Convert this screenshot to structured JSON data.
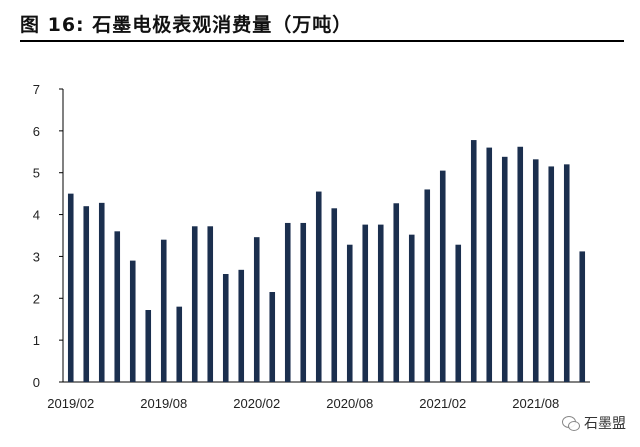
{
  "figure": {
    "title": "图 16:  石墨电极表观消费量（万吨）"
  },
  "watermark": {
    "text": "石墨盟",
    "icon": "wechat-icon"
  },
  "chart_data": {
    "type": "bar",
    "color": "#1b2f4e",
    "categories": [
      "2019/02",
      "2019/03",
      "2019/04",
      "2019/05",
      "2019/06",
      "2019/07",
      "2019/08",
      "2019/09",
      "2019/10",
      "2019/11",
      "2019/12",
      "2020/01",
      "2020/02",
      "2020/03",
      "2020/04",
      "2020/05",
      "2020/06",
      "2020/07",
      "2020/08",
      "2020/09",
      "2020/10",
      "2020/11",
      "2020/12",
      "2021/01",
      "2021/02",
      "2021/03",
      "2021/04",
      "2021/05",
      "2021/06",
      "2021/07",
      "2021/08",
      "2021/09",
      "2021/10",
      "2021/11"
    ],
    "values": [
      4.5,
      4.2,
      4.28,
      3.6,
      2.9,
      1.72,
      3.4,
      1.8,
      3.72,
      3.72,
      2.58,
      2.68,
      3.46,
      2.15,
      3.8,
      3.8,
      4.55,
      4.15,
      3.28,
      3.76,
      3.76,
      4.27,
      3.52,
      4.6,
      5.05,
      3.28,
      5.78,
      5.6,
      5.38,
      5.62,
      5.32,
      5.15,
      5.2,
      3.12
    ],
    "x_tick_labels": [
      "2019/02",
      "2019/08",
      "2020/02",
      "2020/08",
      "2021/02",
      "2021/08"
    ],
    "y_ticks": [
      0,
      1,
      2,
      3,
      4,
      5,
      6,
      7
    ],
    "ylim": [
      0,
      7
    ],
    "grid": false,
    "legend": "none"
  }
}
